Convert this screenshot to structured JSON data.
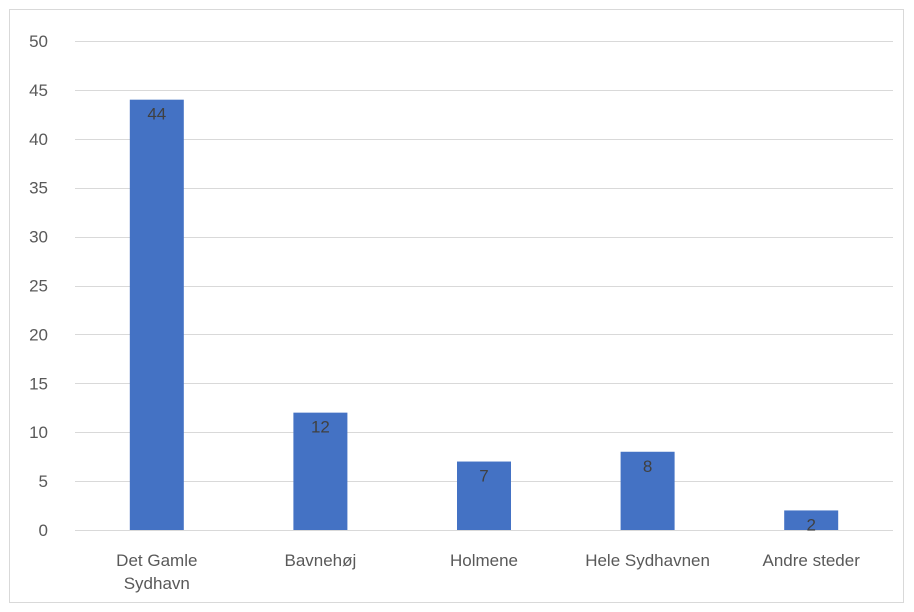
{
  "chart_data": {
    "type": "bar",
    "categories": [
      "Det Gamle\nSydhavn",
      "Bavnehøj",
      "Holmene",
      "Hele Sydhavnen",
      "Andre steder"
    ],
    "values": [
      44,
      12,
      7,
      8,
      2
    ],
    "data_labels": [
      "44",
      "12",
      "7",
      "8",
      "2"
    ],
    "title": "",
    "xlabel": "",
    "ylabel": "",
    "ylim": [
      0,
      50
    ],
    "yticks": [
      0,
      5,
      10,
      15,
      20,
      25,
      30,
      35,
      40,
      45,
      50
    ],
    "grid": true,
    "legend": "none",
    "colors": {
      "bar": "#4472c4",
      "grid": "#d9d9d9",
      "axis": "#d9d9d9",
      "tick_text": "#595959",
      "label_text": "#404040"
    }
  }
}
